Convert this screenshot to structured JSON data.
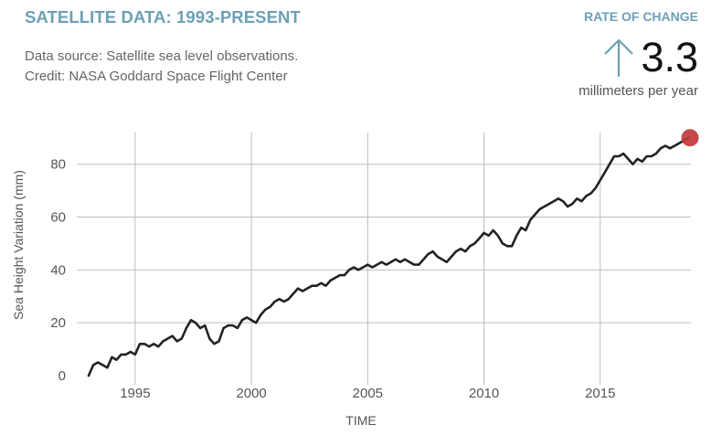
{
  "header": {
    "title": "SATELLITE DATA: 1993-PRESENT",
    "source_line": "Data source: Satellite sea level observations.",
    "credit_line": "Credit: NASA Goddard Space Flight Center"
  },
  "rate": {
    "label": "RATE OF CHANGE",
    "value": "3.3",
    "unit": "millimeters per year",
    "arrow_icon": "up-arrow-icon"
  },
  "colors": {
    "title": "#6d9fb4",
    "line": "#222222",
    "marker": "#c0393b",
    "grid": "#bdbdbd",
    "text": "#555555"
  },
  "chart_data": {
    "type": "line",
    "title": "SATELLITE DATA: 1993-PRESENT",
    "xlabel": "TIME",
    "ylabel": "Sea Height Variation (mm)",
    "xlim": [
      1993,
      2018.9
    ],
    "ylim": [
      0,
      92
    ],
    "x_ticks": [
      1995,
      2000,
      2005,
      2010,
      2015
    ],
    "y_ticks": [
      0,
      20,
      40,
      60,
      80
    ],
    "grid": true,
    "series": [
      {
        "name": "Sea Height Variation",
        "x": [
          1993.0,
          1993.2,
          1993.4,
          1993.6,
          1993.8,
          1994.0,
          1994.2,
          1994.4,
          1994.6,
          1994.8,
          1995.0,
          1995.2,
          1995.4,
          1995.6,
          1995.8,
          1996.0,
          1996.2,
          1996.4,
          1996.6,
          1996.8,
          1997.0,
          1997.2,
          1997.4,
          1997.6,
          1997.8,
          1998.0,
          1998.2,
          1998.4,
          1998.6,
          1998.8,
          1999.0,
          1999.2,
          1999.4,
          1999.6,
          1999.8,
          2000.0,
          2000.2,
          2000.4,
          2000.6,
          2000.8,
          2001.0,
          2001.2,
          2001.4,
          2001.6,
          2001.8,
          2002.0,
          2002.2,
          2002.4,
          2002.6,
          2002.8,
          2003.0,
          2003.2,
          2003.4,
          2003.6,
          2003.8,
          2004.0,
          2004.2,
          2004.4,
          2004.6,
          2004.8,
          2005.0,
          2005.2,
          2005.4,
          2005.6,
          2005.8,
          2006.0,
          2006.2,
          2006.4,
          2006.6,
          2006.8,
          2007.0,
          2007.2,
          2007.4,
          2007.6,
          2007.8,
          2008.0,
          2008.2,
          2008.4,
          2008.6,
          2008.8,
          2009.0,
          2009.2,
          2009.4,
          2009.6,
          2009.8,
          2010.0,
          2010.2,
          2010.4,
          2010.6,
          2010.8,
          2011.0,
          2011.2,
          2011.4,
          2011.6,
          2011.8,
          2012.0,
          2012.2,
          2012.4,
          2012.6,
          2012.8,
          2013.0,
          2013.2,
          2013.4,
          2013.6,
          2013.8,
          2014.0,
          2014.2,
          2014.4,
          2014.6,
          2014.8,
          2015.0,
          2015.2,
          2015.4,
          2015.6,
          2015.8,
          2016.0,
          2016.2,
          2016.4,
          2016.6,
          2016.8,
          2017.0,
          2017.2,
          2017.4,
          2017.6,
          2017.8,
          2018.0,
          2018.2,
          2018.4,
          2018.6,
          2018.8
        ],
        "values": [
          0,
          4,
          5,
          4,
          3,
          7,
          6,
          8,
          8,
          9,
          8,
          12,
          12,
          11,
          12,
          11,
          13,
          14,
          15,
          13,
          14,
          18,
          21,
          20,
          18,
          19,
          14,
          12,
          13,
          18,
          19,
          19,
          18,
          21,
          22,
          21,
          20,
          23,
          25,
          26,
          28,
          29,
          28,
          29,
          31,
          33,
          32,
          33,
          34,
          34,
          35,
          34,
          36,
          37,
          38,
          38,
          40,
          41,
          40,
          41,
          42,
          41,
          42,
          43,
          42,
          43,
          44,
          43,
          44,
          43,
          42,
          42,
          44,
          46,
          47,
          45,
          44,
          43,
          45,
          47,
          48,
          47,
          49,
          50,
          52,
          54,
          53,
          55,
          53,
          50,
          49,
          49,
          53,
          56,
          55,
          59,
          61,
          63,
          64,
          65,
          66,
          67,
          66,
          64,
          65,
          67,
          66,
          68,
          69,
          71,
          74,
          77,
          80,
          83,
          83,
          84,
          82,
          80,
          82,
          81,
          83,
          83,
          84,
          86,
          87,
          86,
          87,
          88,
          89,
          90
        ]
      }
    ],
    "highlight_point": {
      "x": 2018.9,
      "y": 90
    }
  }
}
